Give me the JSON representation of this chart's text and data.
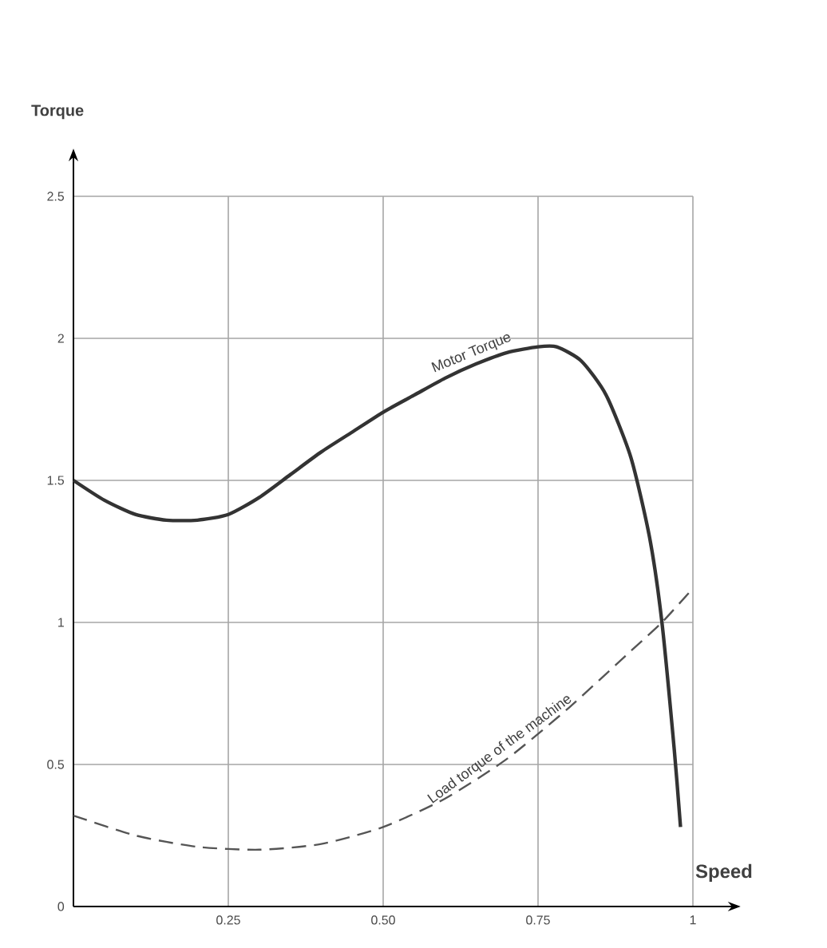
{
  "chart_data": {
    "type": "line",
    "xlabel": "Speed",
    "ylabel": "Torque",
    "xlim": [
      0,
      1
    ],
    "ylim": [
      0,
      2.5
    ],
    "xticks": [
      {
        "value": 0.25,
        "label": "0.25"
      },
      {
        "value": 0.5,
        "label": "0.50"
      },
      {
        "value": 0.75,
        "label": "0.75"
      },
      1
    ],
    "yticks": [
      0,
      0.5,
      1,
      1.5,
      2,
      2.5
    ],
    "grid": true,
    "marker": "none",
    "series": [
      {
        "name": "Motor Torque",
        "color": "#333333",
        "line_style": "solid",
        "x": [
          0,
          0.05,
          0.1,
          0.15,
          0.2,
          0.25,
          0.3,
          0.35,
          0.4,
          0.45,
          0.5,
          0.55,
          0.6,
          0.65,
          0.7,
          0.75,
          0.78,
          0.82,
          0.86,
          0.9,
          0.93,
          0.95,
          0.97,
          0.98
        ],
        "values": [
          1.5,
          1.43,
          1.38,
          1.36,
          1.36,
          1.38,
          1.44,
          1.52,
          1.6,
          1.67,
          1.74,
          1.8,
          1.86,
          1.91,
          1.95,
          1.97,
          1.97,
          1.92,
          1.8,
          1.58,
          1.3,
          1.0,
          0.55,
          0.28
        ]
      },
      {
        "name": "Load torque of the machine",
        "color": "#555555",
        "line_style": "dashed",
        "x": [
          0,
          0.1,
          0.2,
          0.3,
          0.4,
          0.5,
          0.6,
          0.7,
          0.8,
          0.9,
          0.95,
          1.0
        ],
        "values": [
          0.32,
          0.25,
          0.21,
          0.2,
          0.22,
          0.28,
          0.38,
          0.52,
          0.7,
          0.9,
          1.0,
          1.12
        ]
      }
    ]
  }
}
